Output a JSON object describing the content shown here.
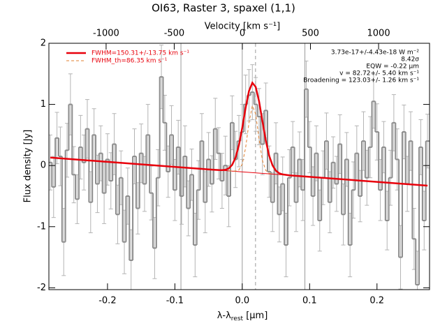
{
  "chart_data": {
    "type": "line",
    "title": "OI63, Raster 3, spaxel (1,1)",
    "xlabel": [
      "λ-λ",
      "rest",
      " [μm]"
    ],
    "x2label": "Velocity [km s⁻¹]",
    "ylabel": "Flux density [Jy]",
    "xlim": [
      -0.287,
      0.278
    ],
    "ylim": [
      -2.03,
      2.0
    ],
    "x2lim": [
      -1420,
      1374
    ],
    "xticks": [
      -0.2,
      -0.1,
      {
        "value": 0,
        "label": "0.0"
      },
      0.1,
      0.2
    ],
    "yticks": [
      -2,
      -1,
      0,
      1,
      2
    ],
    "x2ticks": [
      -1000,
      -500,
      0,
      500,
      1000
    ],
    "vlines": [
      -0.091,
      0,
      0.093
    ],
    "center_line": 0.0197,
    "legend": "upper left",
    "annotations": [
      "3.73e-17+/-4.43e-18 W m⁻²",
      "8.42σ",
      "EQW = -0.22 μm",
      "v = 82.72+/- 5.40 km s⁻¹",
      "Broadening = 123.03+/- 1.26 km s⁻¹"
    ],
    "series": [
      {
        "kind": "step",
        "color": "#8c8c8c",
        "error_color": "#b4b4b4",
        "x": [
          -0.285,
          -0.28,
          -0.275,
          -0.27,
          -0.265,
          -0.26,
          -0.255,
          -0.25,
          -0.245,
          -0.24,
          -0.235,
          -0.23,
          -0.225,
          -0.22,
          -0.215,
          -0.21,
          -0.205,
          -0.2,
          -0.195,
          -0.19,
          -0.185,
          -0.18,
          -0.175,
          -0.17,
          -0.165,
          -0.16,
          -0.155,
          -0.15,
          -0.145,
          -0.14,
          -0.135,
          -0.13,
          -0.125,
          -0.12,
          -0.115,
          -0.11,
          -0.105,
          -0.1,
          -0.095,
          -0.09,
          -0.085,
          -0.08,
          -0.075,
          -0.07,
          -0.065,
          -0.06,
          -0.055,
          -0.05,
          -0.045,
          -0.04,
          -0.035,
          -0.03,
          -0.025,
          -0.02,
          -0.015,
          -0.01,
          -0.005,
          0,
          0.005,
          0.01,
          0.015,
          0.02,
          0.025,
          0.03,
          0.035,
          0.04,
          0.045,
          0.05,
          0.055,
          0.06,
          0.065,
          0.07,
          0.075,
          0.08,
          0.085,
          0.09,
          0.095,
          0.1,
          0.105,
          0.11,
          0.115,
          0.12,
          0.125,
          0.13,
          0.135,
          0.14,
          0.145,
          0.15,
          0.155,
          0.16,
          0.165,
          0.17,
          0.175,
          0.18,
          0.185,
          0.19,
          0.195,
          0.2,
          0.205,
          0.21,
          0.215,
          0.22,
          0.225,
          0.23,
          0.235,
          0.24,
          0.245,
          0.25,
          0.255,
          0.26,
          0.265,
          0.27,
          0.275
        ],
        "values": [
          0.05,
          -0.35,
          0.45,
          0.15,
          -1.25,
          0.25,
          1.0,
          -0.15,
          -0.55,
          0.3,
          0.05,
          0.6,
          -0.6,
          0.5,
          -0.3,
          0.2,
          -0.45,
          0.1,
          -0.25,
          0.35,
          -0.8,
          -0.2,
          -1.25,
          -0.5,
          -1.55,
          0.15,
          -0.7,
          0.2,
          -0.3,
          0.5,
          -0.45,
          -1.35,
          -0.2,
          1.45,
          0.7,
          -0.1,
          0.5,
          -0.4,
          0.3,
          -0.5,
          0.15,
          -0.7,
          -0.15,
          -1.3,
          -0.4,
          0.4,
          -0.6,
          0.1,
          -0.3,
          0.6,
          0.2,
          -0.25,
          0.0,
          -0.5,
          0.7,
          0.1,
          0.4,
          0.55,
          1.0,
          1.15,
          1.2,
          1.0,
          0.8,
          0.35,
          0.9,
          -0.1,
          -0.6,
          0.2,
          -0.8,
          -0.3,
          -1.3,
          -0.2,
          0.3,
          -0.6,
          0.1,
          -0.4,
          1.25,
          0.3,
          -0.5,
          0.2,
          -0.9,
          -0.2,
          0.4,
          -0.6,
          0.05,
          -0.3,
          0.35,
          -0.8,
          0.1,
          -1.3,
          -0.4,
          0.2,
          -0.5,
          0.4,
          -0.2,
          0.3,
          1.05,
          0.55,
          -0.4,
          0.3,
          -0.9,
          -0.2,
          0.7,
          0.1,
          -1.5,
          0.55,
          -0.3,
          0.4,
          -1.2,
          -1.95,
          0.3,
          -0.9,
          0.4
        ],
        "errors": [
          0.45,
          0.5,
          0.42,
          0.48,
          0.55,
          0.44,
          0.5,
          0.46,
          0.4,
          0.52,
          0.45,
          0.48,
          0.5,
          0.43,
          0.47,
          0.45,
          0.5,
          0.42,
          0.46,
          0.5,
          0.48,
          0.44,
          0.52,
          0.46,
          0.5,
          0.45,
          0.42,
          0.48,
          0.45,
          0.5,
          0.44,
          0.5,
          0.46,
          0.52,
          0.45,
          0.42,
          0.48,
          0.5,
          0.44,
          0.46,
          0.5,
          0.45,
          0.42,
          0.52,
          0.48,
          0.45,
          0.5,
          0.44,
          0.46,
          0.5,
          0.42,
          0.45,
          0.48,
          0.5,
          0.44,
          0.46,
          0.42,
          0.45,
          0.48,
          0.42,
          0.45,
          0.44,
          0.46,
          0.5,
          0.45,
          0.42,
          0.48,
          0.5,
          0.45,
          0.44,
          0.52,
          0.46,
          0.42,
          0.48,
          0.45,
          0.5,
          0.46,
          0.42,
          0.48,
          0.45,
          0.5,
          0.44,
          0.46,
          0.5,
          0.42,
          0.45,
          0.48,
          0.5,
          0.44,
          0.52,
          0.46,
          0.45,
          0.42,
          0.48,
          0.45,
          0.5,
          0.44,
          0.46,
          0.5,
          0.42,
          0.48,
          0.45,
          0.46,
          0.5,
          0.52,
          0.44,
          0.45,
          0.48,
          0.5,
          0.55,
          0.45,
          0.48,
          0.44
        ]
      },
      {
        "kind": "thin",
        "color": "#e8000b",
        "x": [
          -0.285,
          0.275
        ],
        "values": [
          0.13,
          -0.329
        ]
      },
      {
        "kind": "solid",
        "name": "FWHM=150.31+/-13.75 km s⁻¹",
        "color": "#e8000b",
        "x": [
          -0.285,
          -0.2,
          -0.1,
          -0.06,
          -0.05,
          -0.04,
          -0.035,
          -0.03,
          -0.025,
          -0.02,
          -0.015,
          -0.01,
          -0.005,
          0,
          0.005,
          0.01,
          0.015,
          0.02,
          0.025,
          0.03,
          0.035,
          0.04,
          0.045,
          0.05,
          0.055,
          0.06,
          0.07,
          0.1,
          0.2,
          0.275
        ],
        "values": [
          0.13,
          0.06,
          -0.022,
          -0.055,
          -0.063,
          -0.071,
          -0.074,
          -0.075,
          -0.069,
          -0.047,
          0.01,
          0.129,
          0.331,
          0.617,
          0.943,
          1.219,
          1.354,
          1.285,
          1.049,
          0.723,
          0.406,
          0.16,
          0.001,
          -0.085,
          -0.127,
          -0.145,
          -0.161,
          -0.185,
          -0.267,
          -0.329
        ]
      },
      {
        "kind": "dashed",
        "name": "FWHM_th=86.35 km s⁻¹",
        "color": "#e08030",
        "x": [
          -0.02,
          -0.01,
          -0.005,
          0,
          0.005,
          0.01,
          0.015,
          0.02,
          0.025,
          0.03,
          0.035,
          0.04,
          0.045
        ],
        "values": [
          -0.087,
          -0.091,
          -0.072,
          0.024,
          0.29,
          0.7,
          0.98,
          0.84,
          0.43,
          0.08,
          -0.08,
          -0.127,
          -0.139
        ]
      }
    ]
  }
}
